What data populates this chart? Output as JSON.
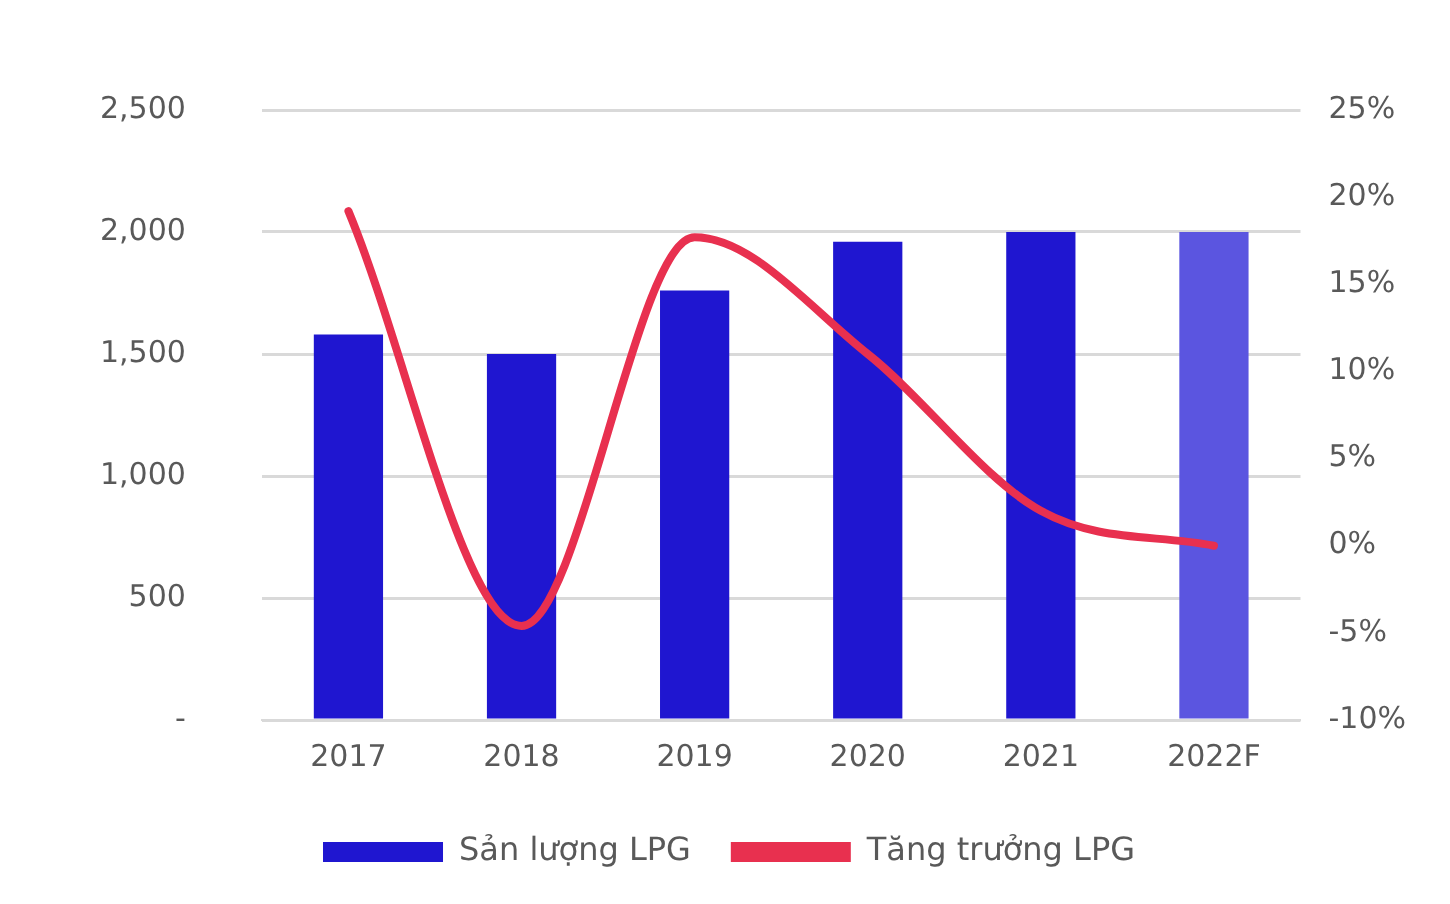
{
  "chart_data": {
    "type": "bar",
    "categories": [
      "2017",
      "2018",
      "2019",
      "2020",
      "2021",
      "2022F"
    ],
    "series": [
      {
        "name": "Sản lượng LPG",
        "color": "#1f16d0",
        "colors": [
          "#1f16d0",
          "#1f16d0",
          "#1f16d0",
          "#1f16d0",
          "#1f16d0",
          "#5b55e0"
        ],
        "values": [
          1580,
          1500,
          1760,
          1960,
          2000,
          2000
        ]
      },
      {
        "name": "Tăng trưởng LPG",
        "type": "line",
        "axis": "y2",
        "color": "#e8304f",
        "values": [
          19.2,
          -4.6,
          17.7,
          11.0,
          2.0,
          0.0
        ]
      }
    ],
    "ylim": [
      0,
      2500
    ],
    "yticks": [
      {
        "value": 0,
        "label": "-"
      },
      {
        "value": 500,
        "label": "500"
      },
      {
        "value": 1000,
        "label": "1,000"
      },
      {
        "value": 1500,
        "label": "1,500"
      },
      {
        "value": 2000,
        "label": "2,000"
      },
      {
        "value": 2500,
        "label": "2,500"
      }
    ],
    "y2lim": [
      -10,
      25
    ],
    "y2ticks": [
      {
        "value": -10,
        "label": "-10%"
      },
      {
        "value": -5,
        "label": "-5%"
      },
      {
        "value": 0,
        "label": "0%"
      },
      {
        "value": 5,
        "label": "5%"
      },
      {
        "value": 10,
        "label": "10%"
      },
      {
        "value": 15,
        "label": "15%"
      },
      {
        "value": 20,
        "label": "20%"
      },
      {
        "value": 25,
        "label": "25%"
      }
    ],
    "grid": "y",
    "legend": "bottom",
    "marker": "none",
    "line_style": "solid"
  }
}
